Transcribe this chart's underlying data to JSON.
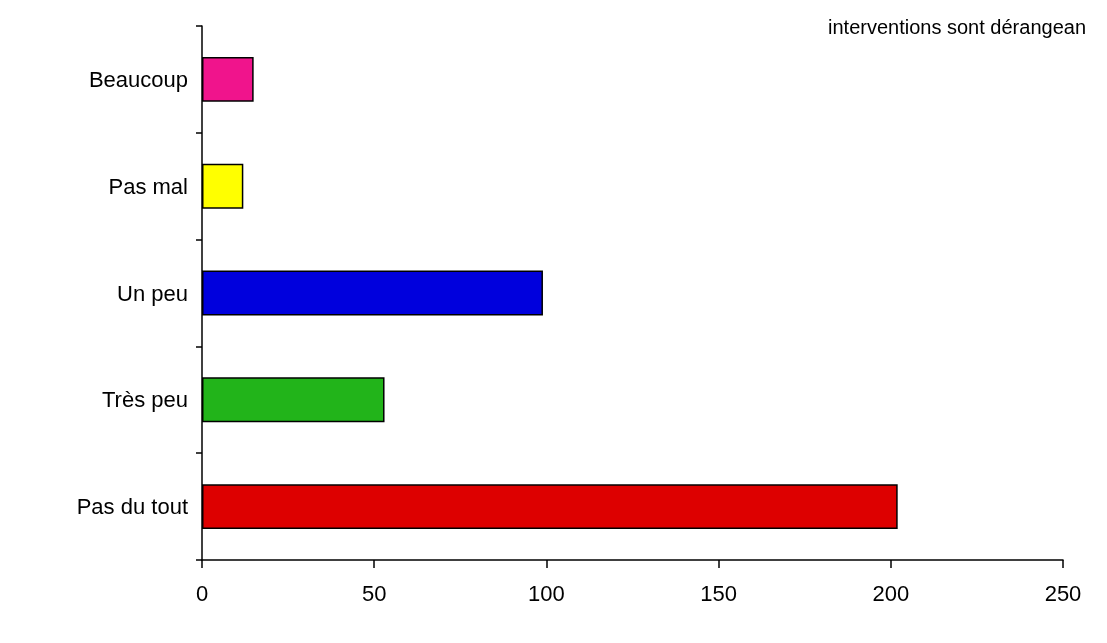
{
  "chart_data": {
    "type": "bar",
    "orientation": "horizontal",
    "title": "interventions sont dérangean",
    "categories": [
      "Beaucoup",
      "Pas mal",
      "Un peu",
      "Très peu",
      "Pas du tout"
    ],
    "values": [
      15,
      12,
      99,
      53,
      202
    ],
    "colors": [
      "#f0148c",
      "#ffff00",
      "#0000dd",
      "#22b41a",
      "#dd0000"
    ],
    "xlim": [
      0,
      250
    ],
    "xticks": [
      0,
      50,
      100,
      150,
      200,
      250
    ],
    "grid": false
  }
}
